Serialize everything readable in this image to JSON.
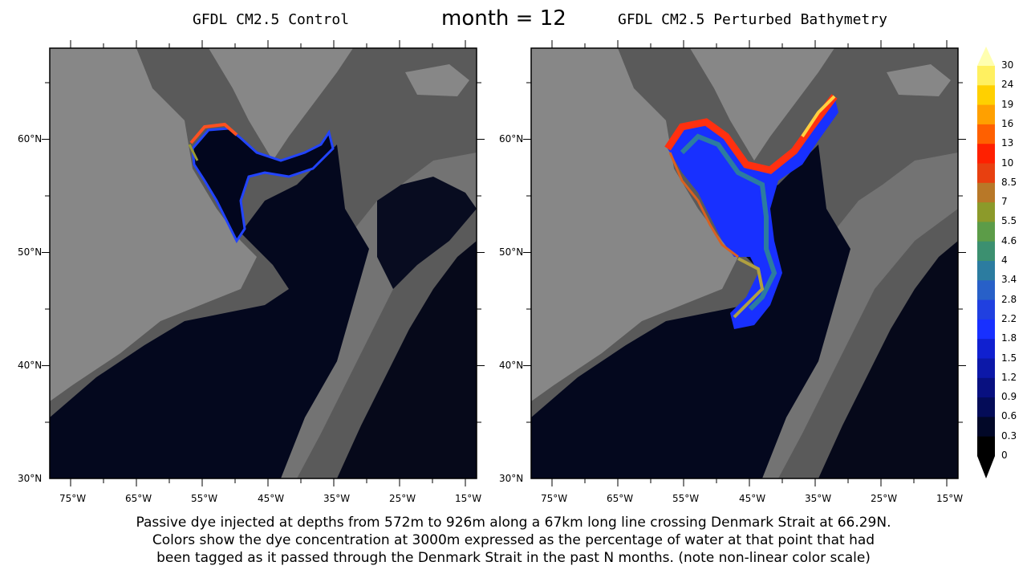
{
  "center_title": "month = 12",
  "panels": [
    {
      "title": "GFDL CM2.5 Control"
    },
    {
      "title": "GFDL CM2.5 Perturbed Bathymetry"
    }
  ],
  "lat_labels": [
    "60°N",
    "50°N",
    "40°N",
    "30°N"
  ],
  "lon_labels": [
    "75°W",
    "65°W",
    "55°W",
    "45°W",
    "35°W",
    "25°W",
    "15°W"
  ],
  "colorbar": {
    "labels": [
      "30",
      "24",
      "19",
      "16",
      "13",
      "10",
      "8.5",
      "7",
      "5.5",
      "4.6",
      "4",
      "3.4",
      "2.8",
      "2.2",
      "1.8",
      "1.5",
      "1.2",
      "0.9",
      "0.6",
      "0.3",
      "0"
    ],
    "colors": [
      "#ffffb0",
      "#fff060",
      "#ffd000",
      "#ffa000",
      "#ff6000",
      "#ff2000",
      "#e84010",
      "#b87828",
      "#8c9a2a",
      "#5c9c48",
      "#3c9070",
      "#2c7ca0",
      "#2860c8",
      "#2040e0",
      "#1830ff",
      "#1020d0",
      "#0c18a8",
      "#081080",
      "#040c58",
      "#020828",
      "#000000"
    ]
  },
  "caption": [
    "Passive dye injected at depths from 572m to 926m along a 67km long line crossing Denmark Strait at 66.29N.",
    "Colors show the dye concentration at 3000m expressed as the percentage of water at that point that had",
    "been tagged as it passed through the Denmark Strait in the past N months. (note non-linear color scale)"
  ]
}
